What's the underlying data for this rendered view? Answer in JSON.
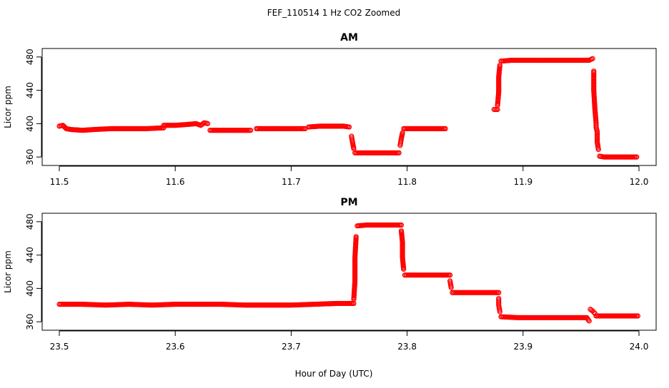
{
  "figure": {
    "title": "FEF_110514  1 Hz CO2 Zoomed",
    "xlabel": "Hour of Day (UTC)"
  },
  "chart_data": [
    {
      "type": "scatter",
      "title": "AM",
      "xlabel": "Hour of Day (UTC)",
      "ylabel": "Licor ppm",
      "xlim": [
        11.5,
        12.0
      ],
      "ylim": [
        355,
        485
      ],
      "xticks": [
        "11.5",
        "11.6",
        "11.7",
        "11.8",
        "11.9",
        "12.0"
      ],
      "yticks": [
        "360",
        "400",
        "440",
        "480"
      ],
      "marker": "open-circle",
      "color": "#ff0000",
      "series": [
        {
          "segments": [
            [
              [
                11.5,
                397
              ],
              [
                11.503,
                398
              ],
              [
                11.506,
                394
              ],
              [
                11.51,
                393
              ],
              [
                11.52,
                392
              ],
              [
                11.53,
                393
              ],
              [
                11.545,
                394
              ],
              [
                11.56,
                394
              ],
              [
                11.575,
                394
              ],
              [
                11.59,
                395
              ]
            ],
            [
              [
                11.59,
                398
              ],
              [
                11.6,
                398
              ],
              [
                11.61,
                399
              ],
              [
                11.618,
                400
              ],
              [
                11.622,
                398
              ],
              [
                11.625,
                401
              ],
              [
                11.628,
                400
              ]
            ],
            [
              [
                11.63,
                392
              ],
              [
                11.64,
                392
              ],
              [
                11.655,
                392
              ],
              [
                11.665,
                392
              ]
            ],
            [
              [
                11.67,
                394
              ],
              [
                11.68,
                394
              ],
              [
                11.69,
                394
              ],
              [
                11.7,
                394
              ],
              [
                11.705,
                394
              ],
              [
                11.712,
                394
              ]
            ],
            [
              [
                11.715,
                396
              ],
              [
                11.725,
                397
              ],
              [
                11.735,
                397
              ],
              [
                11.745,
                397
              ],
              [
                11.75,
                396
              ]
            ],
            [
              [
                11.752,
                385
              ],
              [
                11.753,
                377
              ],
              [
                11.754,
                370
              ]
            ],
            [
              [
                11.755,
                365
              ],
              [
                11.765,
                365
              ],
              [
                11.775,
                365
              ],
              [
                11.785,
                365
              ],
              [
                11.793,
                365
              ]
            ],
            [
              [
                11.794,
                374
              ],
              [
                11.795,
                382
              ],
              [
                11.796,
                389
              ]
            ],
            [
              [
                11.797,
                394
              ],
              [
                11.805,
                394
              ],
              [
                11.815,
                394
              ],
              [
                11.825,
                394
              ],
              [
                11.833,
                394
              ]
            ],
            [
              [
                11.875,
                417
              ],
              [
                11.877,
                417
              ],
              [
                11.878,
                417
              ]
            ],
            [
              [
                11.878,
                422
              ],
              [
                11.879,
                438
              ],
              [
                11.879,
                456
              ],
              [
                11.88,
                470
              ]
            ],
            [
              [
                11.881,
                475
              ],
              [
                11.89,
                476
              ],
              [
                11.9,
                476
              ],
              [
                11.91,
                476
              ],
              [
                11.92,
                476
              ],
              [
                11.93,
                476
              ],
              [
                11.94,
                476
              ],
              [
                11.95,
                476
              ],
              [
                11.957,
                476
              ],
              [
                11.96,
                478
              ]
            ],
            [
              [
                11.961,
                463
              ],
              [
                11.961,
                440
              ],
              [
                11.962,
                417
              ],
              [
                11.963,
                401
              ],
              [
                11.963,
                396
              ],
              [
                11.964,
                390
              ],
              [
                11.964,
                378
              ],
              [
                11.965,
                369
              ]
            ],
            [
              [
                11.966,
                361
              ],
              [
                11.97,
                360
              ],
              [
                11.98,
                360
              ],
              [
                11.99,
                360
              ],
              [
                11.998,
                360
              ]
            ]
          ]
        }
      ]
    },
    {
      "type": "scatter",
      "title": "PM",
      "xlabel": "Hour of Day (UTC)",
      "ylabel": "Licor ppm",
      "xlim": [
        23.5,
        24.0
      ],
      "ylim": [
        355,
        485
      ],
      "xticks": [
        "23.5",
        "23.6",
        "23.7",
        "23.8",
        "23.9",
        "24.0"
      ],
      "yticks": [
        "360",
        "400",
        "440",
        "480"
      ],
      "marker": "open-circle",
      "color": "#ff0000",
      "series": [
        {
          "segments": [
            [
              [
                23.5,
                381
              ],
              [
                23.52,
                381
              ],
              [
                23.54,
                380
              ],
              [
                23.56,
                381
              ],
              [
                23.58,
                380
              ],
              [
                23.6,
                381
              ],
              [
                23.62,
                381
              ],
              [
                23.64,
                381
              ],
              [
                23.66,
                380
              ],
              [
                23.68,
                380
              ],
              [
                23.7,
                380
              ],
              [
                23.72,
                381
              ],
              [
                23.74,
                382
              ],
              [
                23.754,
                382
              ]
            ],
            [
              [
                23.754,
                387
              ],
              [
                23.755,
                409
              ],
              [
                23.755,
                437
              ],
              [
                23.756,
                462
              ]
            ],
            [
              [
                23.757,
                475
              ],
              [
                23.765,
                476
              ],
              [
                23.775,
                476
              ],
              [
                23.785,
                476
              ],
              [
                23.795,
                476
              ]
            ],
            [
              [
                23.795,
                469
              ],
              [
                23.796,
                455
              ],
              [
                23.796,
                437
              ],
              [
                23.797,
                423
              ]
            ],
            [
              [
                23.798,
                416
              ],
              [
                23.808,
                416
              ],
              [
                23.818,
                416
              ],
              [
                23.828,
                416
              ],
              [
                23.837,
                416
              ]
            ],
            [
              [
                23.837,
                409
              ],
              [
                23.838,
                401
              ]
            ],
            [
              [
                23.839,
                395
              ],
              [
                23.85,
                395
              ],
              [
                23.86,
                395
              ],
              [
                23.87,
                395
              ],
              [
                23.879,
                395
              ]
            ],
            [
              [
                23.879,
                388
              ],
              [
                23.879,
                380
              ],
              [
                23.88,
                372
              ]
            ],
            [
              [
                23.881,
                366
              ],
              [
                23.895,
                365
              ],
              [
                23.91,
                365
              ],
              [
                23.925,
                365
              ],
              [
                23.94,
                365
              ],
              [
                23.955,
                365
              ],
              [
                23.957,
                361
              ]
            ],
            [
              [
                23.958,
                375
              ],
              [
                23.96,
                373
              ],
              [
                23.962,
                370
              ]
            ],
            [
              [
                23.963,
                367
              ],
              [
                23.975,
                367
              ],
              [
                23.985,
                367
              ],
              [
                23.999,
                367
              ]
            ]
          ]
        }
      ]
    }
  ]
}
